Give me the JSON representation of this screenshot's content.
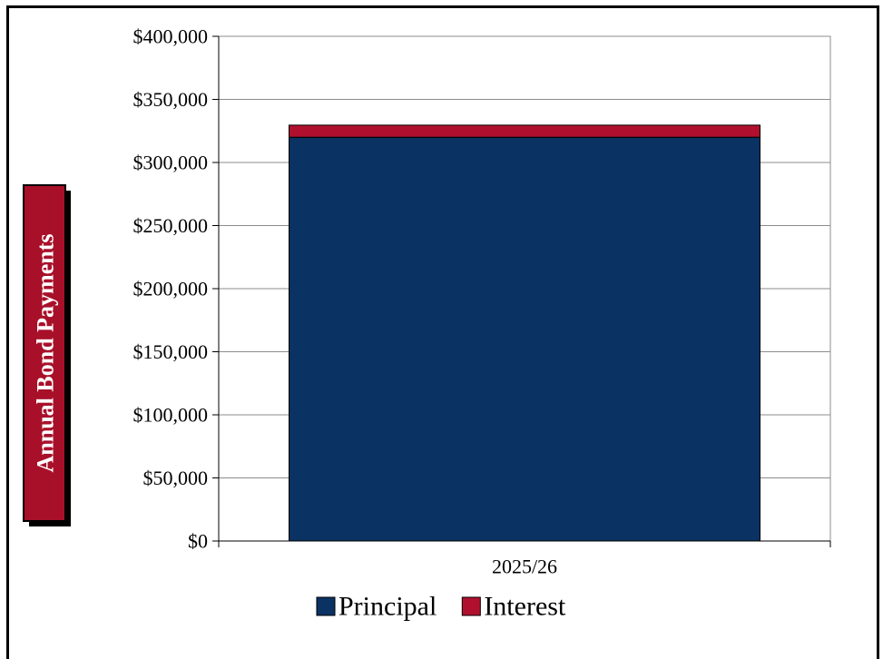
{
  "chart_data": {
    "type": "bar",
    "stacked": true,
    "categories": [
      "2025/26"
    ],
    "series": [
      {
        "name": "Principal",
        "values": [
          320000
        ],
        "color": "#0a3262"
      },
      {
        "name": "Interest",
        "values": [
          9600
        ],
        "color": "#b0102e"
      }
    ],
    "ylabel": "Annual Bond Payments",
    "xlabel": "",
    "ylim": [
      0,
      400000
    ],
    "y_ticks": [
      "$0",
      "$50,000",
      "$100,000",
      "$150,000",
      "$200,000",
      "$250,000",
      "$300,000",
      "$350,000",
      "$400,000"
    ],
    "grid": true,
    "legend": "bottom",
    "ylabel_box_color": "#a8102a"
  }
}
